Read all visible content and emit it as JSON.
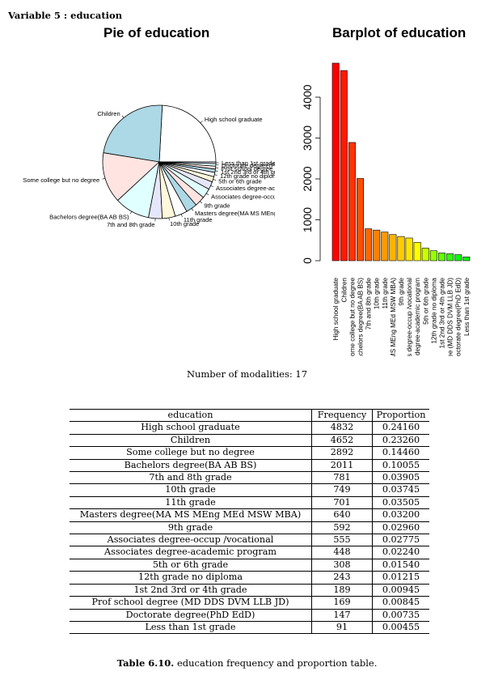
{
  "variable_heading": "Variable 5 : education",
  "modalities_text": "Number of modalities: 17",
  "caption": {
    "label": "Table 6.10.",
    "text": "education frequency and proportion table."
  },
  "table": {
    "headers": [
      "education",
      "Frequency",
      "Proportion"
    ],
    "rows": [
      [
        "High school graduate",
        "4832",
        "0.24160"
      ],
      [
        "Children",
        "4652",
        "0.23260"
      ],
      [
        "Some college but no degree",
        "2892",
        "0.14460"
      ],
      [
        "Bachelors degree(BA AB BS)",
        "2011",
        "0.10055"
      ],
      [
        "7th and 8th grade",
        "781",
        "0.03905"
      ],
      [
        "10th grade",
        "749",
        "0.03745"
      ],
      [
        "11th grade",
        "701",
        "0.03505"
      ],
      [
        "Masters degree(MA MS MEng MEd MSW MBA)",
        "640",
        "0.03200"
      ],
      [
        "9th grade",
        "592",
        "0.02960"
      ],
      [
        "Associates degree-occup /vocational",
        "555",
        "0.02775"
      ],
      [
        "Associates degree-academic program",
        "448",
        "0.02240"
      ],
      [
        "5th or 6th grade",
        "308",
        "0.01540"
      ],
      [
        "12th grade no diploma",
        "243",
        "0.01215"
      ],
      [
        "1st 2nd 3rd or 4th grade",
        "189",
        "0.00945"
      ],
      [
        "Prof school degree (MD DDS DVM LLB JD)",
        "169",
        "0.00845"
      ],
      [
        "Doctorate degree(PhD EdD)",
        "147",
        "0.00735"
      ],
      [
        "Less than 1st grade",
        "91",
        "0.00455"
      ]
    ]
  },
  "chart_data": [
    {
      "type": "pie",
      "title": "Pie of education",
      "labels": [
        "High school graduate",
        "Children",
        "Some college but no degree",
        "Bachelors degree(BA AB BS)",
        "7th and 8th grade",
        "10th grade",
        "11th grade",
        "Masters degree(MA MS MEng MEd MSW MBA)",
        "9th grade",
        "Associates degree-occup /vocational",
        "Associates degree-academic program",
        "5th or 6th grade",
        "12th grade no diploma",
        "1st 2nd 3rd or 4th grade",
        "Prof school degree (MD DDS DVM LLB JD)",
        "Doctorate degree(PhD EdD)",
        "Less than 1st grade"
      ],
      "values": [
        4832,
        4652,
        2892,
        2011,
        781,
        749,
        701,
        640,
        592,
        555,
        448,
        308,
        243,
        189,
        169,
        147,
        91
      ],
      "colors": [
        "#ffffff",
        "#add8e6",
        "#ffe4e1",
        "#e0ffff",
        "#e6e6fa",
        "#fff8dc",
        "#ffffff",
        "#add8e6",
        "#ffe4e1",
        "#e0ffff",
        "#e6e6fa",
        "#fff8dc",
        "#ffffff",
        "#add8e6",
        "#ffe4e1",
        "#e0ffff",
        "#e6e6fa"
      ],
      "direction": "counterclockwise from 3 o'clock"
    },
    {
      "type": "bar",
      "title": "Barplot of education",
      "categories": [
        "High school graduate",
        "Children",
        "Some college but no degree",
        "Bachelors degree(BA AB BS)",
        "7th and 8th grade",
        "10th grade",
        "11th grade",
        "Masters degree(MA MS MEng MEd MSW MBA)",
        "9th grade",
        "Associates degree-occup /vocational",
        "Associates degree-academic program",
        "5th or 6th grade",
        "12th grade no diploma",
        "1st 2nd 3rd or 4th grade",
        "Prof school degree (MD DDS DVM LLB JD)",
        "Doctorate degree(PhD EdD)",
        "Less than 1st grade"
      ],
      "values": [
        4832,
        4652,
        2892,
        2011,
        781,
        749,
        701,
        640,
        592,
        555,
        448,
        308,
        243,
        189,
        169,
        147,
        91
      ],
      "colors": [
        "#ff0000",
        "#ff1a00",
        "#ff3300",
        "#ff4d00",
        "#ff6600",
        "#ff8000",
        "#ff9900",
        "#ffb300",
        "#ffcc00",
        "#ffe600",
        "#ffff00",
        "#ccff00",
        "#99ff00",
        "#66ff00",
        "#33ff00",
        "#00ff00",
        "#00ff00"
      ],
      "yticks": [
        "0",
        "1000",
        "2000",
        "3000",
        "4000"
      ],
      "ylim": [
        0,
        4832
      ]
    }
  ]
}
